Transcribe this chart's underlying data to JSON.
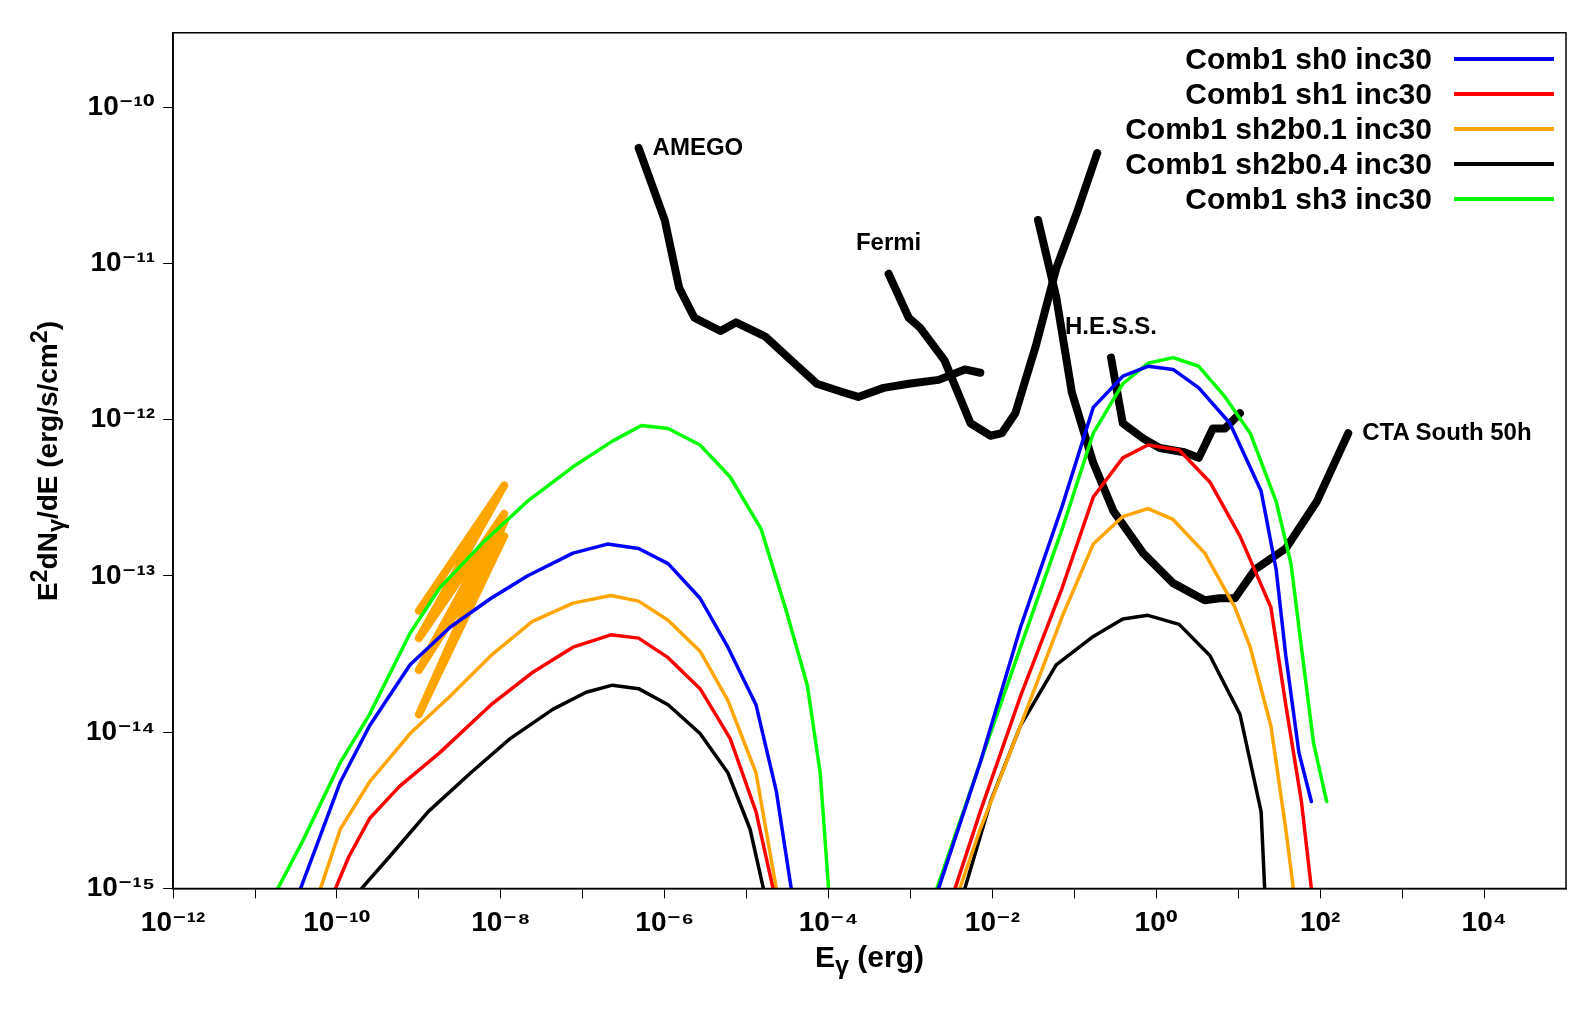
{
  "chart_data": {
    "type": "line",
    "xlabel": "E$_{γ}$ (erg)",
    "ylabel": "E$^{2}$dN$_{γ}$/dE (erg/s/cm$^{2}$)",
    "log": "xy",
    "legend": "top right",
    "annotations": [
      {
        "text": "AMEGO",
        "x": 4.8e-07,
        "y": 5.5e-11
      },
      {
        "text": "Fermi",
        "x": 0.00054,
        "y": 8.6e-12
      },
      {
        "text": "H.E.S.S.",
        "x": 0.28,
        "y": 2.5e-12
      },
      {
        "text": "CTA South 50h",
        "x": 220,
        "y": 8.2e-13
      }
    ],
    "xlim": [
      1e-12,
      100000.0
    ],
    "ylim": [
      1e-15,
      3e-10
    ],
    "xticks": [
      {
        "value": 1e-12,
        "label": "10⁻¹²"
      },
      {
        "value": 1e-11,
        "label": null
      },
      {
        "value": 1e-10,
        "label": "10⁻¹⁰"
      },
      {
        "value": 1e-09,
        "label": null
      },
      {
        "value": 1e-08,
        "label": "10⁻⁸"
      },
      {
        "value": 1e-07,
        "label": null
      },
      {
        "value": 1e-06,
        "label": "10⁻⁶"
      },
      {
        "value": 1e-05,
        "label": null
      },
      {
        "value": 0.0001,
        "label": "10⁻⁴"
      },
      {
        "value": 0.001,
        "label": null
      },
      {
        "value": 0.01,
        "label": "10⁻²"
      },
      {
        "value": 0.1,
        "label": null
      },
      {
        "value": 1,
        "label": "10⁰"
      },
      {
        "value": 10,
        "label": null
      },
      {
        "value": 100,
        "label": "10²"
      },
      {
        "value": 1000,
        "label": null
      },
      {
        "value": 10000,
        "label": "10⁴"
      }
    ],
    "yticks": [
      {
        "value": 1e-15,
        "label": "10⁻¹⁵"
      },
      {
        "value": 1e-14,
        "label": "10⁻¹⁴"
      },
      {
        "value": 1e-13,
        "label": "10⁻¹³"
      },
      {
        "value": 1e-12,
        "label": "10⁻¹²"
      },
      {
        "value": 1e-11,
        "label": "10⁻¹¹"
      },
      {
        "value": 1e-10,
        "label": "10⁻¹⁰"
      }
    ],
    "series": [
      {
        "name": "Comb1 sh0 inc30",
        "color": "#0000ff",
        "x": [
          3.6e-11,
          5.9e-11,
          1.1e-10,
          2.5e-10,
          7.8e-10,
          2.4e-09,
          7.6e-09,
          2.1e-08,
          7.6e-08,
          2e-07,
          4.8e-07,
          1.1e-06,
          2.7e-06,
          5.9e-06,
          1.3e-05,
          2.3e-05,
          3.5e-05,
          0.001,
          0.0022,
          0.0071,
          0.022,
          0.071,
          0.17,
          0.39,
          0.79,
          1.6,
          3.3,
          7.9,
          19,
          29,
          38,
          55,
          78
        ],
        "values": [
          1e-15,
          2e-15,
          4.8e-15,
          1.1e-14,
          2.7e-14,
          4.7e-14,
          7.2e-14,
          1e-13,
          1.4e-13,
          1.6e-13,
          1.5e-13,
          1.2e-13,
          7.2e-14,
          3.5e-14,
          1.5e-14,
          4.2e-15,
          1e-15,
          null,
          1e-15,
          6.4e-15,
          4.7e-14,
          2.8e-13,
          1.2e-12,
          1.9e-12,
          2.2e-12,
          2.1e-12,
          1.6e-12,
          9.5e-13,
          3.5e-13,
          1.1e-13,
          3.1e-14,
          7.4e-15,
          3.6e-15
        ]
      },
      {
        "name": "Comb1 sh1 inc30",
        "color": "#ff0000",
        "x": [
          9.6e-11,
          1.4e-10,
          2.5e-10,
          5.8e-10,
          1.8e-09,
          7.6e-09,
          2.4e-08,
          7.6e-08,
          2.2e-07,
          4.8e-07,
          1.1e-06,
          2.7e-06,
          6.3e-06,
          1.3e-05,
          2.1e-05,
          0.001,
          0.0035,
          0.0071,
          0.022,
          0.071,
          0.17,
          0.39,
          0.79,
          1.9,
          4.5,
          10.5,
          25,
          38,
          59,
          78
        ],
        "values": [
          1e-15,
          1.6e-15,
          2.8e-15,
          4.5e-15,
          7.4e-15,
          1.5e-14,
          2.4e-14,
          3.5e-14,
          4.2e-14,
          4e-14,
          3e-14,
          1.9e-14,
          9.1e-15,
          3.1e-15,
          1e-15,
          null,
          1e-15,
          3.1e-15,
          1.7e-14,
          8.4e-14,
          3.2e-13,
          5.7e-13,
          6.9e-13,
          6.4e-13,
          4e-13,
          1.8e-13,
          6.3e-14,
          1.5e-14,
          3.6e-15,
          1e-15
        ]
      },
      {
        "name": "Comb1 sh2b0.1 inc30",
        "color": "#ffa500",
        "x": [
          6.3e-11,
          1.1e-10,
          2.5e-10,
          7.8e-10,
          2.4e-09,
          7.6e-09,
          2.4e-08,
          7.6e-08,
          2.2e-07,
          4.8e-07,
          1.1e-06,
          2.7e-06,
          5.9e-06,
          1.3e-05,
          2.3e-05,
          0.001,
          0.004,
          0.0071,
          0.022,
          0.071,
          0.17,
          0.39,
          0.79,
          1.6,
          3.9,
          9.1,
          14,
          25,
          38,
          47
        ],
        "values": [
          1e-15,
          2.4e-15,
          4.8e-15,
          9.8e-15,
          1.7e-14,
          3.1e-14,
          5.1e-14,
          6.7e-14,
          7.5e-14,
          6.9e-14,
          5.2e-14,
          3.3e-14,
          1.6e-14,
          5.5e-15,
          1e-15,
          null,
          1e-15,
          2.4e-15,
          1.1e-14,
          5.5e-14,
          1.6e-13,
          2.4e-13,
          2.7e-13,
          2.3e-13,
          1.4e-13,
          6.3e-14,
          3.5e-14,
          1.1e-14,
          2.4e-15,
          1e-15
        ]
      },
      {
        "name": "Comb1 sh2b0.4 inc30",
        "color": "#000000",
        "x": [
          2e-10,
          4.4e-10,
          1.3e-09,
          4.3e-09,
          1.3e-08,
          4.3e-08,
          1.1e-07,
          2.3e-07,
          4.8e-07,
          1.1e-06,
          2.7e-06,
          5.9e-06,
          1.1e-05,
          1.6e-05,
          0.001,
          0.0046,
          0.0095,
          0.022,
          0.06,
          0.17,
          0.39,
          0.79,
          1.9,
          4.5,
          10.5,
          19,
          21
        ],
        "values": [
          1e-15,
          1.6e-15,
          3.1e-15,
          5.5e-15,
          9.1e-15,
          1.4e-14,
          1.8e-14,
          2e-14,
          1.9e-14,
          1.5e-14,
          9.8e-15,
          5.5e-15,
          2.4e-15,
          1e-15,
          null,
          1e-15,
          3.6e-15,
          1.1e-14,
          2.7e-14,
          4.1e-14,
          5.3e-14,
          5.6e-14,
          4.9e-14,
          3.1e-14,
          1.3e-14,
          3.1e-15,
          1e-15
        ]
      },
      {
        "name": "Comb1 sh3 inc30",
        "color": "#00ff00",
        "x": [
          1.9e-11,
          3.8e-11,
          1.1e-10,
          2.5e-10,
          7.8e-10,
          1.8e-09,
          5.8e-09,
          2.1e-08,
          7.6e-08,
          2.3e-07,
          5.2e-07,
          1.1e-06,
          2.7e-06,
          6.3e-06,
          1.5e-05,
          3.1e-05,
          5.5e-05,
          7.9e-05,
          0.0001,
          0.001,
          0.0021,
          0.0071,
          0.022,
          0.071,
          0.17,
          0.39,
          0.79,
          1.6,
          3.3,
          6.9,
          14,
          29,
          44,
          59,
          83,
          120
        ],
        "values": [
          1e-15,
          2e-15,
          6.4e-15,
          1.3e-14,
          4.3e-14,
          8.4e-14,
          1.6e-13,
          3e-13,
          5e-13,
          7.3e-13,
          9.2e-13,
          8.8e-13,
          6.9e-13,
          4.3e-13,
          2e-13,
          5.8e-14,
          2e-14,
          5.5e-15,
          1e-15,
          null,
          1e-15,
          6.4e-15,
          3.5e-14,
          2e-13,
          8.2e-13,
          1.7e-12,
          2.3e-12,
          2.5e-12,
          2.2e-12,
          1.4e-12,
          8.2e-13,
          3e-13,
          1.2e-13,
          3.5e-14,
          8.5e-15,
          3.6e-15
        ]
      },
      {
        "color": "#ffa500",
        "x": [
          1e-09,
          1.1e-08,
          1e-09,
          1.1e-08,
          1e-09,
          1.1e-08,
          1e-09,
          1.1e-08
        ],
        "values": [
          6e-14,
          3.8e-13,
          4e-14,
          2.5e-13,
          2.5e-14,
          1.8e-13,
          1.3e-14,
          2.2e-13
        ]
      },
      {
        "color": "#000000",
        "x": [
          4.8e-07,
          1e-06,
          1.5e-06,
          2.3e-06,
          4.8e-06,
          7.4e-06,
          1.7e-05,
          3.5e-05,
          7.2e-05,
          0.00015,
          0.00023,
          0.00047,
          0.00095,
          0.0022,
          0.0046,
          0.0071
        ],
        "values": [
          5.5e-11,
          1.9e-11,
          7e-12,
          4.5e-12,
          3.7e-12,
          4.2e-12,
          3.4e-12,
          2.4e-12,
          1.7e-12,
          1.5e-12,
          1.4e-12,
          1.6e-12,
          1.7e-12,
          1.8e-12,
          2.1e-12,
          2e-12
        ]
      },
      {
        "color": "#000000",
        "x": [
          0.00054,
          0.00095,
          0.0013,
          0.0026,
          0.0054,
          0.0095,
          0.013,
          0.019,
          0.034,
          0.06,
          0.11,
          0.19
        ],
        "values": [
          8.6e-12,
          4.5e-12,
          3.9e-12,
          2.4e-12,
          9.5e-13,
          7.9e-13,
          8.2e-13,
          1.1e-12,
          3e-12,
          9.3e-12,
          2.2e-11,
          5.1e-11
        ]
      },
      {
        "color": "#000000",
        "x": [
          0.28,
          0.39,
          0.69,
          1.1,
          2.2,
          3.3,
          4.9,
          6.9,
          10.5
        ],
        "values": [
          2.5e-12,
          9.5e-13,
          7.6e-13,
          6.6e-13,
          6.2e-13,
          5.7e-13,
          8.8e-13,
          8.8e-13,
          1.1e-12
        ]
      },
      {
        "color": "#000000",
        "x": [
          0.036,
          0.06,
          0.093,
          0.17,
          0.3,
          0.69,
          1.6,
          3.9,
          5.9,
          9.1,
          16,
          38,
          91,
          160,
          220
        ],
        "values": [
          1.9e-11,
          6.1e-12,
          1.5e-12,
          5.3e-13,
          2.6e-13,
          1.4e-13,
          9e-14,
          7e-14,
          7.2e-14,
          7.2e-14,
          1.1e-13,
          1.5e-13,
          3e-13,
          5.7e-13,
          8.2e-13
        ]
      }
    ]
  }
}
